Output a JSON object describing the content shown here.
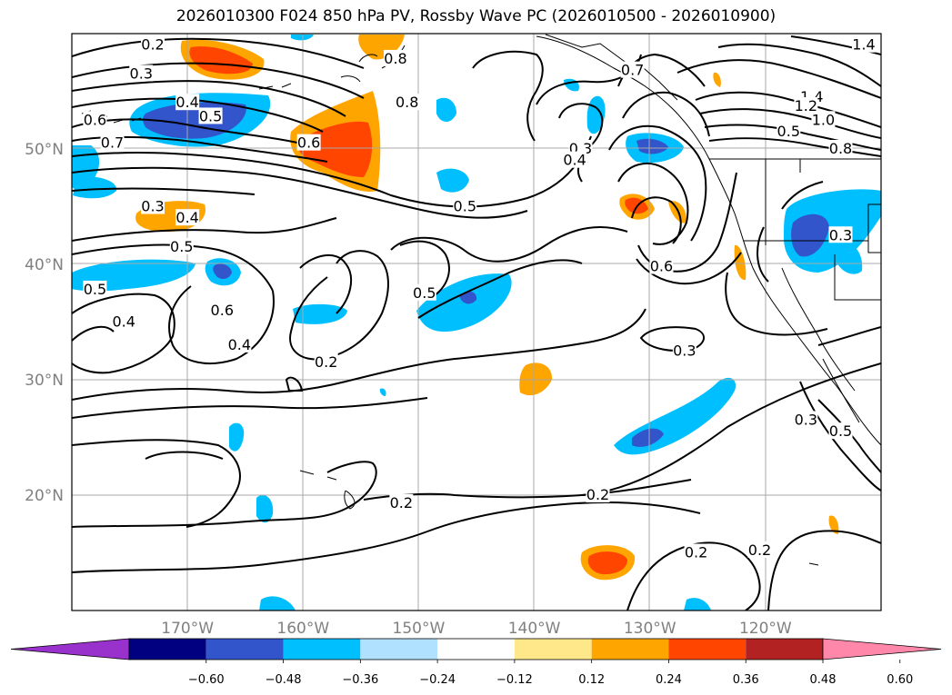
{
  "title": "2026010300 F024 850 hPa PV, Rossby Wave PC (2026010500 - 2026010900)",
  "map": {
    "lon_range": [
      -180,
      -110
    ],
    "lat_range": [
      10,
      60
    ],
    "lat_labels": [
      {
        "lat": 50,
        "text": "50°N"
      },
      {
        "lat": 40,
        "text": "40°N"
      },
      {
        "lat": 30,
        "text": "30°N"
      },
      {
        "lat": 20,
        "text": "20°N"
      }
    ],
    "lon_labels": [
      {
        "lon": -170,
        "text": "170°W"
      },
      {
        "lon": -160,
        "text": "160°W"
      },
      {
        "lon": -150,
        "text": "150°W"
      },
      {
        "lon": -140,
        "text": "140°W"
      },
      {
        "lon": -130,
        "text": "130°W"
      },
      {
        "lon": -120,
        "text": "120°W"
      }
    ],
    "contour_labels": [
      {
        "text": "0.2",
        "lon": -173,
        "lat": 59
      },
      {
        "text": "0.3",
        "lon": -174,
        "lat": 56.5
      },
      {
        "text": "0.4",
        "lon": -170,
        "lat": 54
      },
      {
        "text": "0.5",
        "lon": -168,
        "lat": 52.8
      },
      {
        "text": "0.6",
        "lon": -178,
        "lat": 52.5
      },
      {
        "text": "0.7",
        "lon": -176.5,
        "lat": 50.5
      },
      {
        "text": "0.6",
        "lon": -159.5,
        "lat": 50.5
      },
      {
        "text": "0.8",
        "lon": -151,
        "lat": 54
      },
      {
        "text": "0.8",
        "lon": -152,
        "lat": 57.8
      },
      {
        "text": "0.3",
        "lon": -173,
        "lat": 45
      },
      {
        "text": "0.4",
        "lon": -170,
        "lat": 44
      },
      {
        "text": "0.5",
        "lon": -146,
        "lat": 45
      },
      {
        "text": "0.5",
        "lon": -170.5,
        "lat": 41.5
      },
      {
        "text": "0.5",
        "lon": -178,
        "lat": 37.8
      },
      {
        "text": "0.4",
        "lon": -175.5,
        "lat": 35
      },
      {
        "text": "0.6",
        "lon": -167,
        "lat": 36
      },
      {
        "text": "0.5",
        "lon": -149.5,
        "lat": 37.5
      },
      {
        "text": "0.4",
        "lon": -165.5,
        "lat": 33
      },
      {
        "text": "0.2",
        "lon": -158,
        "lat": 31.5
      },
      {
        "text": "0.7",
        "lon": -131.5,
        "lat": 56.8
      },
      {
        "text": "0.3",
        "lon": -136,
        "lat": 50
      },
      {
        "text": "0.4",
        "lon": -136.5,
        "lat": 49
      },
      {
        "text": "1.4",
        "lon": -116,
        "lat": 54.5
      },
      {
        "text": "1.2",
        "lon": -116.5,
        "lat": 53.7
      },
      {
        "text": "1.0",
        "lon": -115,
        "lat": 52.5
      },
      {
        "text": "0.8",
        "lon": -113.5,
        "lat": 50
      },
      {
        "text": "0.5",
        "lon": -118,
        "lat": 51.5
      },
      {
        "text": "1.4",
        "lon": -111.5,
        "lat": 59
      },
      {
        "text": "0.6",
        "lon": -129,
        "lat": 39.8
      },
      {
        "text": "0.3",
        "lon": -113.5,
        "lat": 42.5
      },
      {
        "text": "0.3",
        "lon": -127,
        "lat": 32.5
      },
      {
        "text": "0.3",
        "lon": -116.5,
        "lat": 26.5
      },
      {
        "text": "0.5",
        "lon": -113.5,
        "lat": 25.5
      },
      {
        "text": "0.2",
        "lon": -134.5,
        "lat": 20
      },
      {
        "text": "0.2",
        "lon": -151.5,
        "lat": 19.3
      },
      {
        "text": "0.2",
        "lon": -126,
        "lat": 15
      },
      {
        "text": "0.2",
        "lon": -120.5,
        "lat": 15.2
      }
    ]
  },
  "colorbar": {
    "colors": [
      "#9932cc",
      "#000080",
      "#3355cc",
      "#00bfff",
      "#b0e2ff",
      "#ffffff",
      "#ffe88a",
      "#ffa500",
      "#ff4500",
      "#b22222",
      "#ff88aa"
    ],
    "ticks": [
      "−0.60",
      "−0.48",
      "−0.36",
      "−0.24",
      "−0.12",
      "0.12",
      "0.24",
      "0.36",
      "0.48",
      "0.60"
    ]
  }
}
